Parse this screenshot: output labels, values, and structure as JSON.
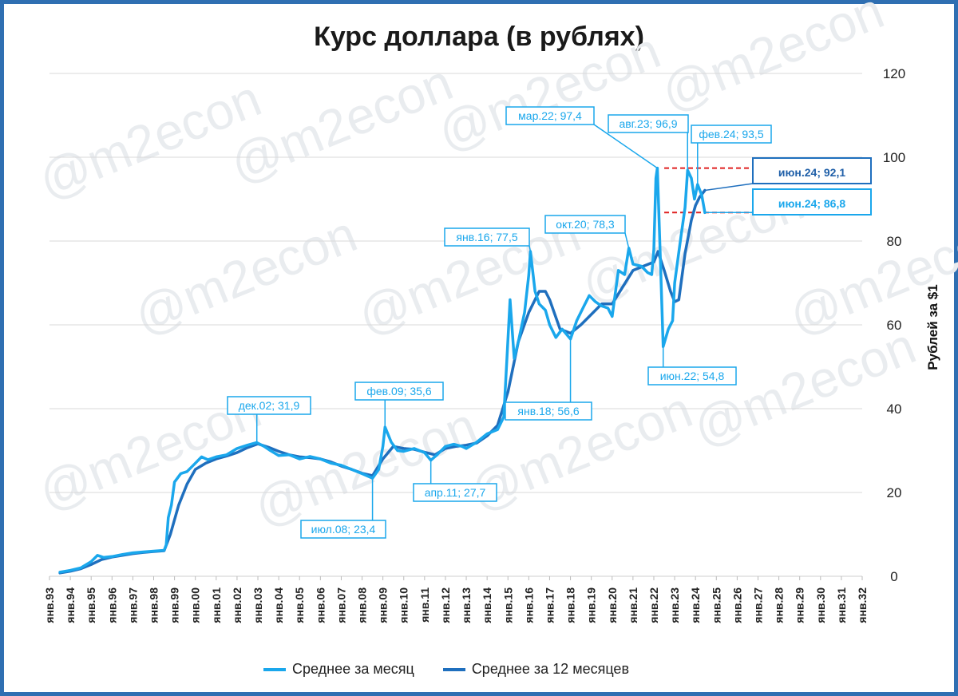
{
  "chart_data": {
    "type": "line",
    "title": "Курс доллара (в рублях)",
    "ylabel": "Рублей за $1",
    "ylim": [
      0,
      120
    ],
    "yticks": [
      "0",
      "20",
      "40",
      "60",
      "80",
      "100",
      "120"
    ],
    "xlabels": [
      "янв.93",
      "янв.94",
      "янв.95",
      "янв.96",
      "янв.97",
      "янв.98",
      "янв.99",
      "янв.00",
      "янв.01",
      "янв.02",
      "янв.03",
      "янв.04",
      "янв.05",
      "янв.06",
      "янв.07",
      "янв.08",
      "янв.09",
      "янв.10",
      "янв.11",
      "янв.12",
      "янв.13",
      "янв.14",
      "янв.15",
      "янв.16",
      "янв.17",
      "янв.18",
      "янв.19",
      "янв.20",
      "янв.21",
      "янв.22",
      "янв.23",
      "янв.24",
      "янв.25",
      "янв.26",
      "янв.27",
      "янв.28",
      "янв.29",
      "янв.30",
      "янв.31",
      "янв.32"
    ],
    "grid": true,
    "legend_position": "bottom",
    "series": [
      {
        "name": "Среднее за месяц",
        "color": "#1aa7ec",
        "points": [
          [
            1993.5,
            1.0
          ],
          [
            1994.0,
            1.4
          ],
          [
            1994.5,
            2.0
          ],
          [
            1995.0,
            3.5
          ],
          [
            1995.3,
            5.0
          ],
          [
            1995.6,
            4.5
          ],
          [
            1996.0,
            4.7
          ],
          [
            1996.5,
            5.2
          ],
          [
            1997.0,
            5.6
          ],
          [
            1997.5,
            5.8
          ],
          [
            1998.0,
            6.0
          ],
          [
            1998.5,
            6.2
          ],
          [
            1998.6,
            7.5
          ],
          [
            1998.7,
            14.0
          ],
          [
            1998.85,
            17.0
          ],
          [
            1999.0,
            22.5
          ],
          [
            1999.3,
            24.5
          ],
          [
            1999.6,
            25.0
          ],
          [
            2000.0,
            27.0
          ],
          [
            2000.3,
            28.5
          ],
          [
            2000.6,
            27.8
          ],
          [
            2001.0,
            28.5
          ],
          [
            2001.5,
            29.0
          ],
          [
            2002.0,
            30.5
          ],
          [
            2002.5,
            31.3
          ],
          [
            2002.95,
            31.9
          ],
          [
            2003.3,
            31.0
          ],
          [
            2003.6,
            30.0
          ],
          [
            2004.0,
            28.8
          ],
          [
            2004.5,
            29.0
          ],
          [
            2005.0,
            28.0
          ],
          [
            2005.5,
            28.6
          ],
          [
            2006.0,
            28.0
          ],
          [
            2006.5,
            27.0
          ],
          [
            2007.0,
            26.5
          ],
          [
            2007.5,
            25.5
          ],
          [
            2008.0,
            24.5
          ],
          [
            2008.5,
            23.4
          ],
          [
            2008.8,
            25.5
          ],
          [
            2009.0,
            31.0
          ],
          [
            2009.1,
            35.6
          ],
          [
            2009.4,
            32.0
          ],
          [
            2009.7,
            30.0
          ],
          [
            2010.0,
            29.8
          ],
          [
            2010.5,
            30.5
          ],
          [
            2011.0,
            29.5
          ],
          [
            2011.3,
            27.7
          ],
          [
            2011.6,
            29.0
          ],
          [
            2012.0,
            31.0
          ],
          [
            2012.4,
            31.5
          ],
          [
            2012.8,
            31.0
          ],
          [
            2013.0,
            30.5
          ],
          [
            2013.5,
            32.0
          ],
          [
            2014.0,
            34.0
          ],
          [
            2014.5,
            35.0
          ],
          [
            2014.8,
            38.0
          ],
          [
            2014.95,
            52.0
          ],
          [
            2015.1,
            66.0
          ],
          [
            2015.3,
            52.0
          ],
          [
            2015.5,
            56.0
          ],
          [
            2015.8,
            63.0
          ],
          [
            2016.0,
            72.0
          ],
          [
            2016.08,
            77.5
          ],
          [
            2016.3,
            68.0
          ],
          [
            2016.5,
            65.0
          ],
          [
            2016.8,
            63.5
          ],
          [
            2017.0,
            60.0
          ],
          [
            2017.3,
            57.0
          ],
          [
            2017.6,
            59.0
          ],
          [
            2018.0,
            56.6
          ],
          [
            2018.3,
            61.0
          ],
          [
            2018.6,
            64.0
          ],
          [
            2018.9,
            67.0
          ],
          [
            2019.2,
            65.5
          ],
          [
            2019.5,
            64.5
          ],
          [
            2019.8,
            64.0
          ],
          [
            2020.0,
            62.0
          ],
          [
            2020.3,
            73.0
          ],
          [
            2020.6,
            72.0
          ],
          [
            2020.8,
            78.3
          ],
          [
            2021.0,
            74.5
          ],
          [
            2021.4,
            74.0
          ],
          [
            2021.7,
            72.5
          ],
          [
            2021.9,
            72.0
          ],
          [
            2022.0,
            78.0
          ],
          [
            2022.1,
            95.0
          ],
          [
            2022.17,
            97.4
          ],
          [
            2022.3,
            78.0
          ],
          [
            2022.45,
            54.8
          ],
          [
            2022.7,
            59.0
          ],
          [
            2022.9,
            61.0
          ],
          [
            2023.0,
            70.0
          ],
          [
            2023.3,
            81.0
          ],
          [
            2023.5,
            88.0
          ],
          [
            2023.62,
            96.9
          ],
          [
            2023.8,
            95.0
          ],
          [
            2023.95,
            90.0
          ],
          [
            2024.1,
            93.5
          ],
          [
            2024.3,
            91.0
          ],
          [
            2024.45,
            86.8
          ]
        ]
      },
      {
        "name": "Среднее за 12 месяцев",
        "color": "#1f6fbe",
        "points": [
          [
            1993.5,
            0.8
          ],
          [
            1994.0,
            1.2
          ],
          [
            1994.5,
            1.8
          ],
          [
            1995.0,
            2.8
          ],
          [
            1995.5,
            4.0
          ],
          [
            1996.0,
            4.6
          ],
          [
            1996.5,
            5.0
          ],
          [
            1997.0,
            5.4
          ],
          [
            1997.5,
            5.7
          ],
          [
            1998.0,
            5.9
          ],
          [
            1998.5,
            6.1
          ],
          [
            1998.8,
            10.0
          ],
          [
            1999.2,
            17.0
          ],
          [
            1999.6,
            22.0
          ],
          [
            2000.0,
            25.5
          ],
          [
            2000.5,
            27.0
          ],
          [
            2001.0,
            28.0
          ],
          [
            2001.5,
            28.7
          ],
          [
            2002.0,
            29.5
          ],
          [
            2002.5,
            30.7
          ],
          [
            2003.0,
            31.6
          ],
          [
            2003.5,
            30.8
          ],
          [
            2004.0,
            29.8
          ],
          [
            2004.5,
            29.0
          ],
          [
            2005.0,
            28.5
          ],
          [
            2005.5,
            28.3
          ],
          [
            2006.0,
            28.0
          ],
          [
            2006.5,
            27.3
          ],
          [
            2007.0,
            26.3
          ],
          [
            2007.5,
            25.5
          ],
          [
            2008.0,
            24.6
          ],
          [
            2008.5,
            24.0
          ],
          [
            2009.0,
            28.0
          ],
          [
            2009.5,
            31.0
          ],
          [
            2010.0,
            30.5
          ],
          [
            2010.5,
            30.3
          ],
          [
            2011.0,
            29.6
          ],
          [
            2011.5,
            29.0
          ],
          [
            2012.0,
            30.5
          ],
          [
            2012.5,
            31.0
          ],
          [
            2013.0,
            31.3
          ],
          [
            2013.5,
            31.8
          ],
          [
            2014.0,
            33.5
          ],
          [
            2014.5,
            36.0
          ],
          [
            2015.0,
            44.0
          ],
          [
            2015.5,
            56.0
          ],
          [
            2016.0,
            63.0
          ],
          [
            2016.5,
            68.0
          ],
          [
            2016.8,
            68.0
          ],
          [
            2017.0,
            66.0
          ],
          [
            2017.5,
            59.0
          ],
          [
            2018.0,
            58.0
          ],
          [
            2018.5,
            60.0
          ],
          [
            2019.0,
            62.5
          ],
          [
            2019.5,
            65.0
          ],
          [
            2020.0,
            65.0
          ],
          [
            2020.5,
            69.0
          ],
          [
            2021.0,
            73.0
          ],
          [
            2021.5,
            74.0
          ],
          [
            2022.0,
            75.0
          ],
          [
            2022.2,
            77.5
          ],
          [
            2022.5,
            73.0
          ],
          [
            2022.8,
            68.0
          ],
          [
            2023.0,
            65.5
          ],
          [
            2023.2,
            66.0
          ],
          [
            2023.5,
            77.0
          ],
          [
            2023.8,
            85.0
          ],
          [
            2024.0,
            88.5
          ],
          [
            2024.2,
            90.5
          ],
          [
            2024.45,
            92.1
          ]
        ]
      }
    ],
    "annotations": [
      {
        "text": "дек.02; 31,9",
        "x": 2002.95,
        "y": 31.9,
        "series": 0
      },
      {
        "text": "июл.08; 23,4",
        "x": 2008.5,
        "y": 23.4,
        "series": 0
      },
      {
        "text": "фев.09; 35,6",
        "x": 2009.1,
        "y": 35.6,
        "series": 0
      },
      {
        "text": "апр.11; 27,7",
        "x": 2011.3,
        "y": 27.7,
        "series": 0
      },
      {
        "text": "янв.16; 77,5",
        "x": 2016.08,
        "y": 77.5,
        "series": 0
      },
      {
        "text": "янв.18; 56,6",
        "x": 2018.0,
        "y": 56.6,
        "series": 0
      },
      {
        "text": "окт.20; 78,3",
        "x": 2020.8,
        "y": 78.3,
        "series": 0
      },
      {
        "text": "мар.22; 97,4",
        "x": 2022.17,
        "y": 97.4,
        "series": 0
      },
      {
        "text": "июн.22; 54,8",
        "x": 2022.45,
        "y": 54.8,
        "series": 0
      },
      {
        "text": "авг.23; 96,9",
        "x": 2023.62,
        "y": 96.9,
        "series": 0
      },
      {
        "text": "фев.24; 93,5",
        "x": 2024.1,
        "y": 93.5,
        "series": 0
      },
      {
        "text": "июн.24; 92,1",
        "x": 2024.45,
        "y": 92.1,
        "series": 1
      },
      {
        "text": "июн.24; 86,8",
        "x": 2024.45,
        "y": 86.8,
        "series": 0
      }
    ],
    "reference_lines": [
      {
        "y": 97.4,
        "x_from": 2022.5,
        "x_to": 2027.5,
        "color": "#e02020"
      },
      {
        "y": 86.8,
        "x_from": 2022.5,
        "x_to": 2027.5,
        "color": "#e02020"
      }
    ]
  },
  "watermark": "@m2econ"
}
